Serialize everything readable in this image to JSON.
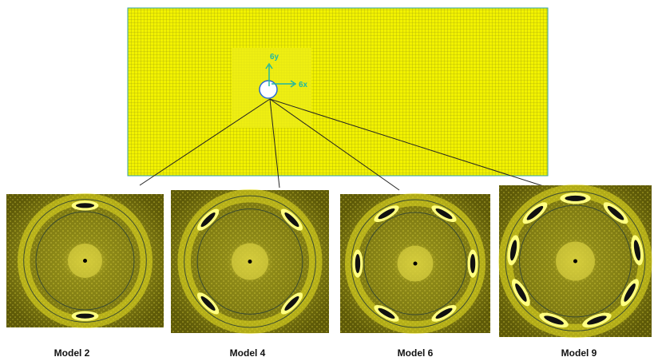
{
  "mesh": {
    "labels": {
      "y": "6y",
      "x": "6x"
    }
  },
  "models": [
    "Model 2",
    "Model 4",
    "Model 6",
    "Model 9"
  ]
}
